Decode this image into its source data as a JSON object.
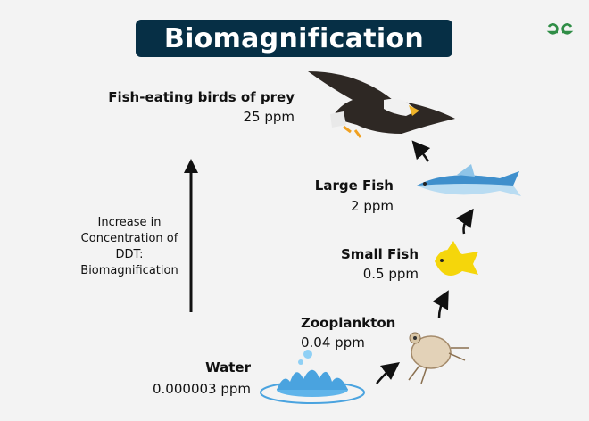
{
  "title": "Biomagnification",
  "logo": {
    "icon": "gfg-logo-icon",
    "color": "#2f8d46"
  },
  "colors": {
    "title_bg": "#062f45",
    "background": "#f3f3f3"
  },
  "side_label": {
    "lines": [
      "Increase in",
      "Concentration of",
      "DDT:",
      "Biomagnification"
    ]
  },
  "levels": [
    {
      "name": "Water",
      "ppm": "0.000003 ppm",
      "icon": "water-splash-icon"
    },
    {
      "name": "Zooplankton",
      "ppm": "0.04 ppm",
      "icon": "zooplankton-icon"
    },
    {
      "name": "Small Fish",
      "ppm": "0.5 ppm",
      "icon": "small-yellow-fish-icon"
    },
    {
      "name": "Large Fish",
      "ppm": "2 ppm",
      "icon": "large-blue-fish-icon"
    },
    {
      "name": "Fish-eating birds of prey",
      "ppm": "25 ppm",
      "icon": "eagle-icon"
    }
  ]
}
